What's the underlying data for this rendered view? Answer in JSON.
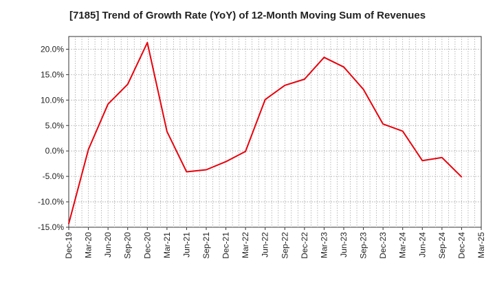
{
  "chart_data": {
    "type": "line",
    "title": "[7185]  Trend of Growth Rate (YoY) of 12-Month Moving Sum of Revenues",
    "xlabel": "",
    "ylabel": "",
    "x_tick_labels": [
      "Dec-19",
      "Mar-20",
      "Jun-20",
      "Sep-20",
      "Dec-20",
      "Mar-21",
      "Jun-21",
      "Sep-21",
      "Dec-21",
      "Mar-22",
      "Jun-22",
      "Sep-22",
      "Dec-22",
      "Mar-23",
      "Jun-23",
      "Sep-23",
      "Dec-23",
      "Mar-24",
      "Jun-24",
      "Sep-24",
      "Dec-24",
      "Mar-25"
    ],
    "y_tick_labels": [
      "20.0%",
      "15.0%",
      "10.0%",
      "5.0%",
      "0.0%",
      "-5.0%",
      "-10.0%",
      "-15.0%"
    ],
    "y_ticks": [
      20,
      15,
      10,
      5,
      0,
      -5,
      -10,
      -15
    ],
    "ylim": [
      -15,
      22.5
    ],
    "grid": true,
    "series": [
      {
        "color": "#e8000b",
        "x": [
          "Dec-19",
          "Mar-20",
          "Jun-20",
          "Sep-20",
          "Dec-20",
          "Mar-21",
          "Jun-21",
          "Sep-21",
          "Dec-21",
          "Mar-22",
          "Jun-22",
          "Sep-22",
          "Dec-22",
          "Mar-23",
          "Jun-23",
          "Sep-23",
          "Dec-23",
          "Mar-24",
          "Jun-24",
          "Sep-24",
          "Dec-24"
        ],
        "values": [
          -14.3,
          0.3,
          9.2,
          13.1,
          21.3,
          3.8,
          -4.1,
          -3.7,
          -2.1,
          -0.1,
          10.1,
          12.9,
          14.1,
          18.4,
          16.5,
          12.1,
          5.3,
          3.9,
          -1.9,
          -1.3,
          -5.1
        ]
      }
    ]
  }
}
